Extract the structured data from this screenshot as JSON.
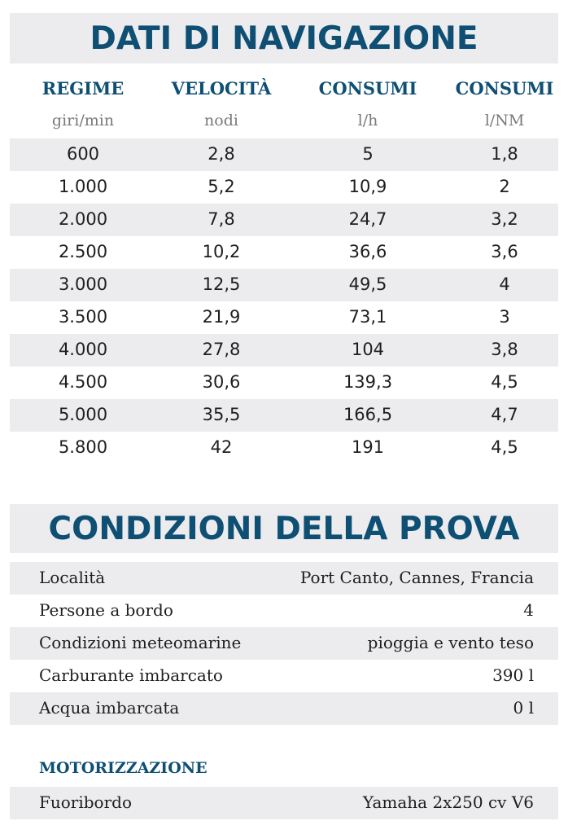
{
  "navigation": {
    "title": "DATI DI NAVIGAZIONE",
    "columns": [
      {
        "header": "REGIME",
        "unit": "giri/min"
      },
      {
        "header": "VELOCITÀ",
        "unit": "nodi"
      },
      {
        "header": "CONSUMI",
        "unit": "l/h"
      },
      {
        "header": "CONSUMI",
        "unit": "l/NM"
      }
    ],
    "rows": [
      [
        "600",
        "2,8",
        "5",
        "1,8"
      ],
      [
        "1.000",
        "5,2",
        "10,9",
        "2"
      ],
      [
        "2.000",
        "7,8",
        "24,7",
        "3,2"
      ],
      [
        "2.500",
        "10,2",
        "36,6",
        "3,6"
      ],
      [
        "3.000",
        "12,5",
        "49,5",
        "4"
      ],
      [
        "3.500",
        "21,9",
        "73,1",
        "3"
      ],
      [
        "4.000",
        "27,8",
        "104",
        "3,8"
      ],
      [
        "4.500",
        "30,6",
        "139,3",
        "4,5"
      ],
      [
        "5.000",
        "35,5",
        "166,5",
        "4,7"
      ],
      [
        "5.800",
        "42",
        "191",
        "4,5"
      ]
    ]
  },
  "conditions": {
    "title": "CONDIZIONI DELLA PROVA",
    "rows": [
      {
        "label": "Località",
        "value": "Port Canto, Cannes, Francia"
      },
      {
        "label": "Persone a bordo",
        "value": "4"
      },
      {
        "label": "Condizioni meteomarine",
        "value": "pioggia e vento teso"
      },
      {
        "label": "Carburante imbarcato",
        "value": "390 l"
      },
      {
        "label": "Acqua imbarcata",
        "value": "0 l"
      }
    ]
  },
  "engine": {
    "title": "MOTORIZZAZIONE",
    "label": "Fuoribordo",
    "value": "Yamaha 2x250 cv V6"
  },
  "colors": {
    "accent": "#0e4f73",
    "stripe": "#ececee"
  }
}
